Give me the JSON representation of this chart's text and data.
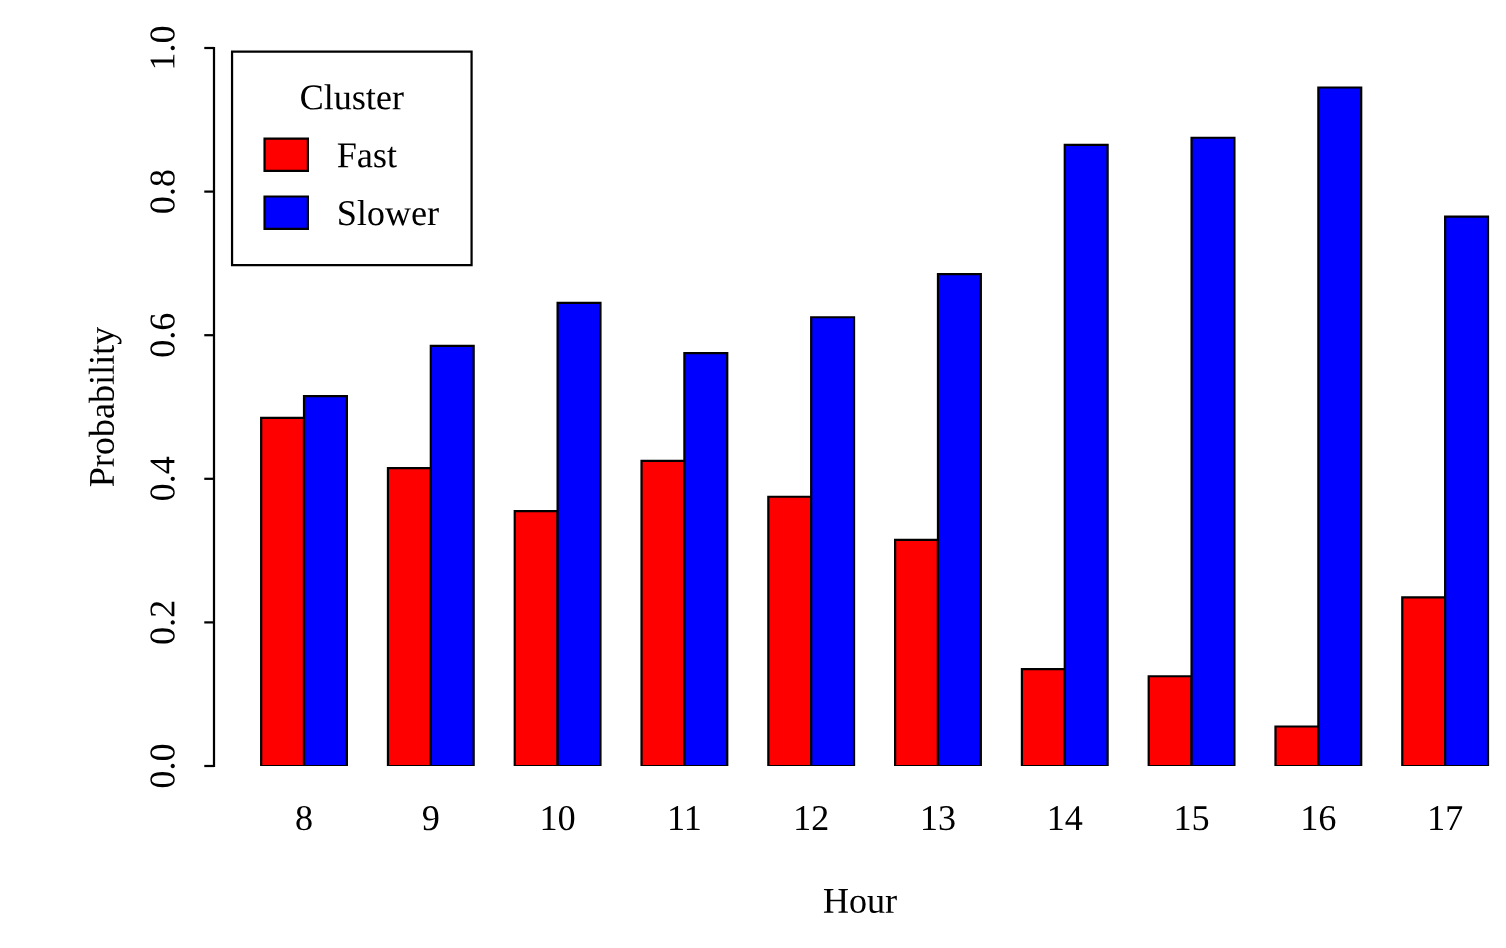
{
  "chart_data": {
    "type": "bar",
    "xlabel": "Hour",
    "ylabel": "Probability",
    "legend_title": "Cluster",
    "legend": "top left",
    "grid": false,
    "categories": [
      "8",
      "9",
      "10",
      "11",
      "12",
      "13",
      "14",
      "15",
      "16",
      "17"
    ],
    "ylim": [
      0,
      1
    ],
    "yticks": [
      {
        "value": 0,
        "label": "0.0"
      },
      {
        "value": 0.2,
        "label": "0.2"
      },
      {
        "value": 0.4,
        "label": "0.4"
      },
      {
        "value": 0.6,
        "label": "0.6"
      },
      {
        "value": 0.8,
        "label": "0.8"
      },
      {
        "value": 1,
        "label": "1.0"
      }
    ],
    "series": [
      {
        "name": "Fast",
        "color": "#ff0000",
        "values": [
          0.485,
          0.415,
          0.355,
          0.425,
          0.375,
          0.315,
          0.135,
          0.125,
          0.055,
          0.235
        ]
      },
      {
        "name": "Slower",
        "color": "#0000ff",
        "values": [
          0.515,
          0.585,
          0.645,
          0.575,
          0.625,
          0.685,
          0.865,
          0.875,
          0.945,
          0.765
        ]
      }
    ]
  }
}
